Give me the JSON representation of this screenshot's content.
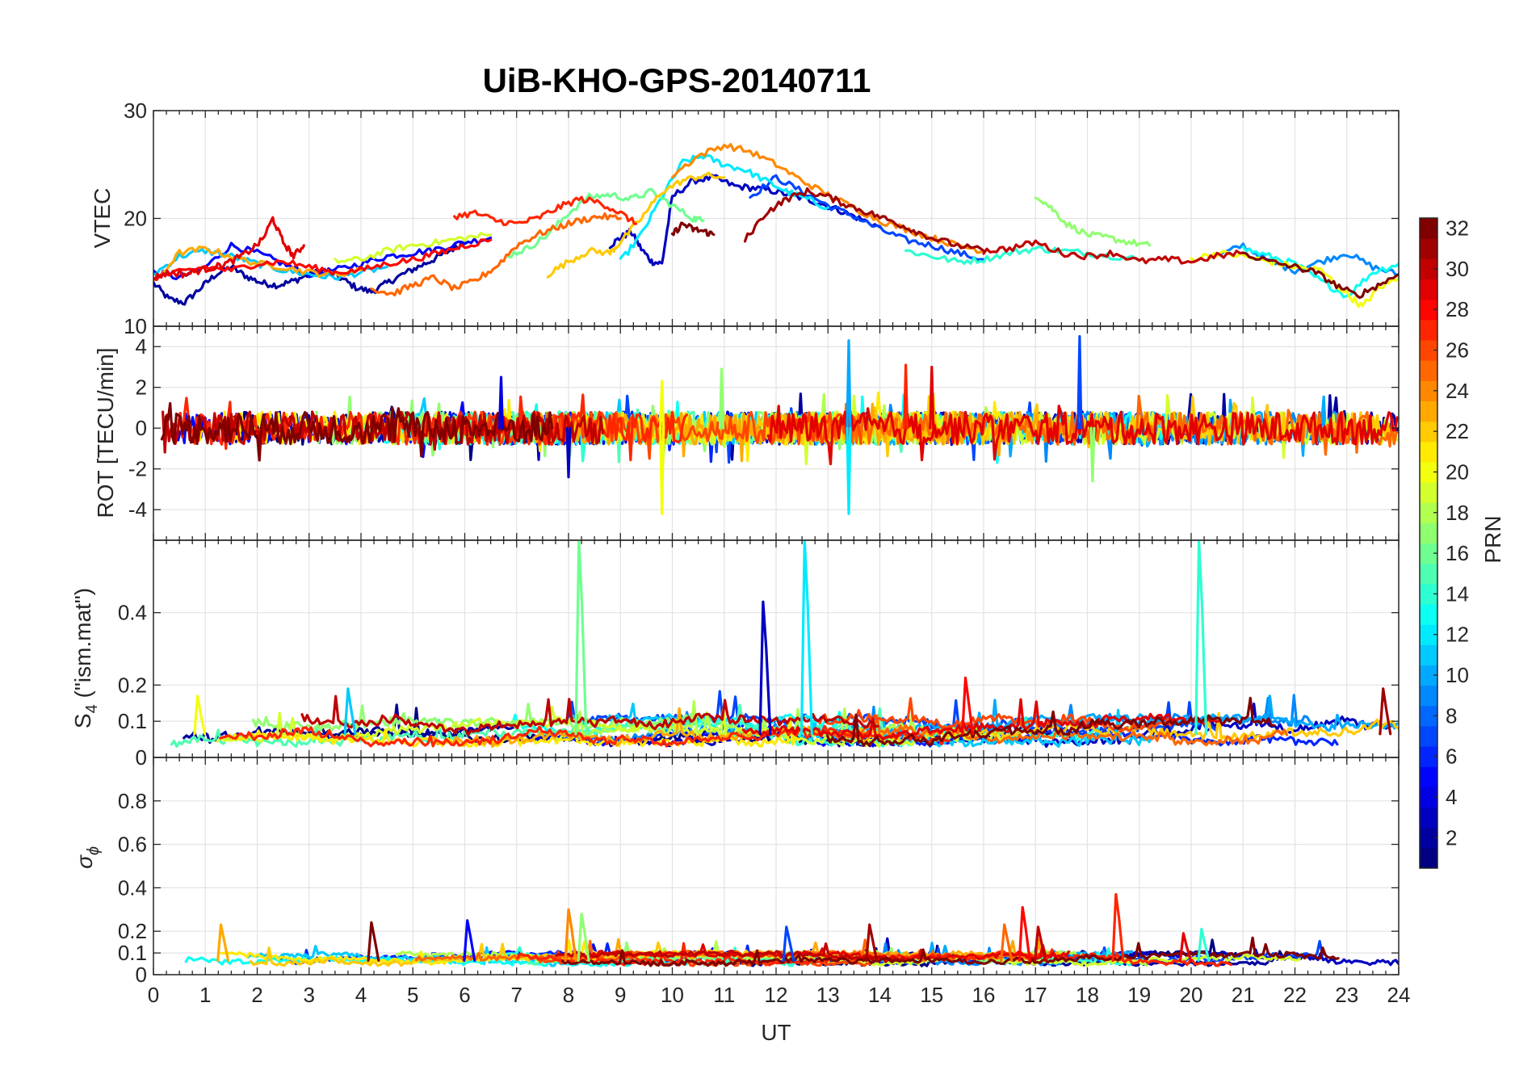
{
  "figure_title": "UiB-KHO-GPS-20140711",
  "x_axis": {
    "label": "UT",
    "ticks": [
      "0",
      "1",
      "2",
      "3",
      "4",
      "5",
      "6",
      "7",
      "8",
      "9",
      "10",
      "11",
      "12",
      "13",
      "14",
      "15",
      "16",
      "17",
      "18",
      "19",
      "20",
      "21",
      "22",
      "23",
      "24"
    ]
  },
  "colorbar": {
    "label": "PRN",
    "ticks": [
      "2",
      "4",
      "6",
      "8",
      "10",
      "12",
      "14",
      "16",
      "18",
      "20",
      "22",
      "24",
      "26",
      "28",
      "30",
      "32"
    ],
    "colormap": "jet",
    "range": [
      1,
      32
    ]
  },
  "panel_labels": {
    "vtec": "VTEC",
    "rot": "ROT [TECU/min]",
    "s4_main": "S",
    "s4_sub": "4",
    "s4_suffix": " (\"ism.mat\")",
    "sigma_main": "σ",
    "sigma_sub": "ϕ"
  },
  "chart_data": [
    {
      "type": "line",
      "panel": "VTEC",
      "xlabel": "UT",
      "ylabel": "VTEC",
      "xlim": [
        0,
        24
      ],
      "ylim": [
        10,
        30
      ],
      "yticks": [
        "10",
        "20",
        "30"
      ],
      "yticks_values": [
        10,
        20,
        30
      ],
      "grid": true,
      "series": [
        {
          "prn": 2,
          "x": [
            0.0,
            0.3,
            0.6,
            0.9,
            1.2,
            1.5,
            1.8,
            2.1,
            2.4,
            2.7,
            3.0,
            3.3,
            3.6,
            3.9,
            4.2,
            4.5,
            4.8,
            5.1,
            5.4,
            5.7,
            6.0
          ],
          "y": [
            14.0,
            12.5,
            12.2,
            13.5,
            14.8,
            15.5,
            14.6,
            14.0,
            13.8,
            14.2,
            14.8,
            15.2,
            14.5,
            13.6,
            13.2,
            14.0,
            14.8,
            15.5,
            16.2,
            17.0,
            17.8
          ]
        },
        {
          "prn": 3,
          "x": [
            8.8,
            9.0,
            9.2,
            9.4,
            9.6,
            9.8,
            10.0,
            10.4,
            10.8,
            11.2,
            11.6,
            12.0,
            12.4,
            12.8,
            13.2,
            13.6,
            14.0
          ],
          "y": [
            17.5,
            18.2,
            18.8,
            17.2,
            16.0,
            15.8,
            22.0,
            23.5,
            23.8,
            23.0,
            22.8,
            22.5,
            22.0,
            21.5,
            20.8,
            20.0,
            19.2
          ]
        },
        {
          "prn": 5,
          "x": [
            0.0,
            0.5,
            1.0,
            1.5,
            2.0,
            2.5,
            3.0,
            3.5,
            4.0,
            4.5,
            5.0,
            5.5,
            6.0,
            6.5
          ],
          "y": [
            15.0,
            14.5,
            15.5,
            17.5,
            16.8,
            15.8,
            14.8,
            15.2,
            15.8,
            16.5,
            16.8,
            17.2,
            17.8,
            18.2
          ]
        },
        {
          "prn": 7,
          "x": [
            11.5,
            12.0,
            12.5,
            13.0,
            13.5,
            14.0,
            14.5,
            15.0,
            15.5,
            16.0
          ],
          "y": [
            22.0,
            23.8,
            22.5,
            21.2,
            20.2,
            19.0,
            18.0,
            17.5,
            16.8,
            16.2
          ]
        },
        {
          "prn": 9,
          "x": [
            20.5,
            21.0,
            21.5,
            22.0,
            22.5,
            23.0,
            23.5,
            24.0
          ],
          "y": [
            16.5,
            17.5,
            16.0,
            15.2,
            16.0,
            16.8,
            15.5,
            14.8
          ]
        },
        {
          "prn": 11,
          "x": [
            0.0,
            0.5,
            1.0,
            1.5,
            2.0,
            2.5,
            3.0,
            3.5,
            4.0,
            4.5
          ],
          "y": [
            14.8,
            16.5,
            17.0,
            16.5,
            15.8,
            15.2,
            14.8,
            14.5,
            15.0,
            15.5
          ]
        },
        {
          "prn": 12,
          "x": [
            9.0,
            9.4,
            9.8,
            10.2,
            10.6,
            11.0,
            11.4,
            11.8,
            12.2,
            12.6,
            13.0
          ],
          "y": [
            16.0,
            18.5,
            22.0,
            25.2,
            25.8,
            25.0,
            24.5,
            23.5,
            22.5,
            21.8,
            21.0
          ]
        },
        {
          "prn": 13,
          "x": [
            21.0,
            21.5,
            22.0,
            22.5,
            23.0,
            23.5,
            24.0
          ],
          "y": [
            17.2,
            16.5,
            15.8,
            14.2,
            12.8,
            15.0,
            15.8
          ]
        },
        {
          "prn": 14,
          "x": [
            14.5,
            15.0,
            15.5,
            16.0,
            16.5,
            17.0,
            17.5,
            18.0,
            18.5,
            19.0
          ],
          "y": [
            17.0,
            16.5,
            16.0,
            16.2,
            16.8,
            17.2,
            17.0,
            16.8,
            16.5,
            16.2
          ]
        },
        {
          "prn": 16,
          "x": [
            6.8,
            7.2,
            7.6,
            8.0,
            8.4,
            8.8,
            9.2,
            9.6,
            10.0,
            10.4,
            10.6
          ],
          "y": [
            16.5,
            17.2,
            18.5,
            20.5,
            22.0,
            22.2,
            21.8,
            22.5,
            21.2,
            20.0,
            19.8
          ]
        },
        {
          "prn": 17,
          "x": [
            17.0,
            17.3,
            17.6,
            18.0,
            18.4,
            18.8,
            19.2
          ],
          "y": [
            22.2,
            21.0,
            19.5,
            18.5,
            18.2,
            17.8,
            17.5
          ]
        },
        {
          "prn": 19,
          "x": [
            3.5,
            4.0,
            4.5,
            5.0,
            5.5,
            6.0,
            6.5
          ],
          "y": [
            16.0,
            16.2,
            17.0,
            17.5,
            17.8,
            18.2,
            18.5
          ]
        },
        {
          "prn": 20,
          "x": [
            20.0,
            20.5,
            21.0,
            21.5,
            22.0,
            22.5,
            23.0,
            23.3,
            23.6,
            24.0
          ],
          "y": [
            16.2,
            16.8,
            16.5,
            16.0,
            15.5,
            15.2,
            13.0,
            11.8,
            13.5,
            14.5
          ]
        },
        {
          "prn": 22,
          "x": [
            7.6,
            8.0,
            8.4,
            8.8,
            9.0,
            9.4,
            9.8,
            10.2,
            10.6,
            11.0
          ],
          "y": [
            14.8,
            16.0,
            17.0,
            16.8,
            17.8,
            20.0,
            22.5,
            23.5,
            24.0,
            23.8
          ]
        },
        {
          "prn": 23,
          "x": [
            0.0,
            0.5,
            1.0,
            1.5,
            2.0,
            2.5,
            3.0,
            3.5,
            4.0
          ],
          "y": [
            14.0,
            16.8,
            17.2,
            16.5,
            15.8,
            15.5,
            15.0,
            14.8,
            15.2
          ]
        },
        {
          "prn": 24,
          "x": [
            10.0,
            10.5,
            11.0,
            11.5,
            12.0,
            12.5,
            13.0,
            13.5,
            14.0,
            14.5,
            15.0,
            15.5,
            16.0
          ],
          "y": [
            24.0,
            25.8,
            26.8,
            26.2,
            25.0,
            23.5,
            22.2,
            21.0,
            19.8,
            19.0,
            18.2,
            17.5,
            17.0
          ]
        },
        {
          "prn": 25,
          "x": [
            4.2,
            4.6,
            5.0,
            5.4,
            5.8,
            6.2,
            6.6,
            7.0,
            7.4,
            7.8,
            8.2,
            8.6,
            9.0
          ],
          "y": [
            13.5,
            13.0,
            13.8,
            14.5,
            13.5,
            14.2,
            15.5,
            17.5,
            18.5,
            19.2,
            19.8,
            20.2,
            20.0
          ]
        },
        {
          "prn": 27,
          "x": [
            5.8,
            6.2,
            6.6,
            7.0,
            7.4,
            7.8,
            8.2,
            8.6,
            9.0,
            9.3
          ],
          "y": [
            20.2,
            20.5,
            19.8,
            19.5,
            20.0,
            21.0,
            21.8,
            21.5,
            20.5,
            19.5
          ]
        },
        {
          "prn": 28,
          "x": [
            0.0,
            0.5,
            1.0,
            1.5,
            2.0,
            2.5,
            3.0,
            3.5,
            4.0,
            4.5,
            5.0,
            5.5,
            6.0,
            6.5
          ],
          "y": [
            14.5,
            15.0,
            15.5,
            15.2,
            15.8,
            16.0,
            15.5,
            15.0,
            15.2,
            15.8,
            16.2,
            16.8,
            17.5,
            18.0
          ]
        },
        {
          "prn": 29,
          "x": [
            0.0,
            0.3,
            0.6,
            0.9,
            1.2,
            1.5,
            1.8,
            2.1,
            2.3,
            2.5,
            2.7,
            2.9
          ],
          "y": [
            14.5,
            15.0,
            14.8,
            15.2,
            15.5,
            16.0,
            16.8,
            18.0,
            20.0,
            17.8,
            16.5,
            17.5
          ]
        },
        {
          "prn": 30,
          "x": [
            16.0,
            16.5,
            17.0,
            17.5,
            18.0,
            18.5,
            19.0,
            19.5,
            20.0,
            20.5,
            21.0
          ],
          "y": [
            17.0,
            17.2,
            17.8,
            16.8,
            16.5,
            16.8,
            16.0,
            16.2,
            16.0,
            16.5,
            16.8
          ]
        },
        {
          "prn": 31,
          "x": [
            11.4,
            11.8,
            12.2,
            12.6,
            13.0,
            13.4,
            13.8,
            14.2,
            14.6,
            15.0,
            15.5,
            16.0
          ],
          "y": [
            18.0,
            20.5,
            21.8,
            22.5,
            22.0,
            21.2,
            20.5,
            19.8,
            19.0,
            18.2,
            17.5,
            17.0
          ]
        },
        {
          "prn": 32,
          "x": [
            10.0,
            10.2,
            10.4,
            10.6,
            10.8
          ],
          "y": [
            18.5,
            19.5,
            19.0,
            18.8,
            18.5
          ]
        },
        {
          "prn": 32,
          "x": [
            21.0,
            21.5,
            22.0,
            22.4,
            22.8,
            23.2,
            23.6,
            24.0
          ],
          "y": [
            16.8,
            16.0,
            15.5,
            15.0,
            13.8,
            12.8,
            13.8,
            14.8
          ]
        }
      ]
    },
    {
      "type": "line",
      "panel": "ROT",
      "xlabel": "UT",
      "ylabel": "ROT [TECU/min]",
      "xlim": [
        0,
        24
      ],
      "ylim": [
        -5.5,
        5
      ],
      "yticks": [
        "-4",
        "-2",
        "0",
        "2",
        "4"
      ],
      "yticks_values": [
        -4,
        -2,
        0,
        2,
        4
      ],
      "grid": true,
      "notable_spikes": [
        {
          "x": 13.4,
          "y": 4.3,
          "prn": 10
        },
        {
          "x": 13.4,
          "y": -4.2,
          "prn": 12
        },
        {
          "x": 17.85,
          "y": 4.5,
          "prn": 7
        },
        {
          "x": 9.8,
          "y": -4.2,
          "prn": 20
        },
        {
          "x": 9.8,
          "y": 2.3,
          "prn": 20
        },
        {
          "x": 14.5,
          "y": 3.1,
          "prn": 27
        },
        {
          "x": 15.0,
          "y": 3.0,
          "prn": 29
        },
        {
          "x": 18.1,
          "y": -2.6,
          "prn": 17
        },
        {
          "x": 8.0,
          "y": -2.4,
          "prn": 3
        },
        {
          "x": 10.95,
          "y": 2.9,
          "prn": 17
        },
        {
          "x": 6.7,
          "y": 2.5,
          "prn": 4
        }
      ],
      "noise_envelope": {
        "typical_amplitude": 0.8,
        "max_amplitude": 2.5,
        "series_count": 24
      }
    },
    {
      "type": "line",
      "panel": "S4",
      "xlabel": "UT",
      "ylabel": "S4 (\"ism.mat\")",
      "xlim": [
        0,
        24
      ],
      "ylim": [
        0,
        0.6
      ],
      "yticks": [
        "0",
        "0.1",
        "0.2",
        "0.4"
      ],
      "yticks_values": [
        0,
        0.1,
        0.2,
        0.4
      ],
      "grid": true,
      "baseline_range": [
        0.03,
        0.1
      ],
      "notable_spikes": [
        {
          "x": 8.2,
          "y": 0.6,
          "prn": 16
        },
        {
          "x": 11.75,
          "y": 0.43,
          "prn": 3
        },
        {
          "x": 12.55,
          "y": 0.6,
          "prn": 12
        },
        {
          "x": 20.15,
          "y": 0.6,
          "prn": 14
        },
        {
          "x": 15.65,
          "y": 0.22,
          "prn": 28
        },
        {
          "x": 23.7,
          "y": 0.19,
          "prn": 31
        },
        {
          "x": 3.75,
          "y": 0.19,
          "prn": 11
        },
        {
          "x": 0.85,
          "y": 0.17,
          "prn": 20
        }
      ]
    },
    {
      "type": "line",
      "panel": "sigma_phi",
      "xlabel": "UT",
      "ylabel": "σϕ",
      "xlim": [
        0,
        24
      ],
      "ylim": [
        0,
        1
      ],
      "yticks": [
        "0",
        "0.1",
        "0.2",
        "0.4",
        "0.6",
        "0.8"
      ],
      "yticks_values": [
        0,
        0.1,
        0.2,
        0.4,
        0.6,
        0.8
      ],
      "grid": true,
      "baseline_range": [
        0.04,
        0.09
      ],
      "notable_spikes": [
        {
          "x": 18.55,
          "y": 0.37,
          "prn": 27
        },
        {
          "x": 16.75,
          "y": 0.31,
          "prn": 28
        },
        {
          "x": 8.0,
          "y": 0.3,
          "prn": 24
        },
        {
          "x": 8.25,
          "y": 0.28,
          "prn": 17
        },
        {
          "x": 6.05,
          "y": 0.25,
          "prn": 5
        },
        {
          "x": 1.3,
          "y": 0.23,
          "prn": 23
        },
        {
          "x": 4.2,
          "y": 0.24,
          "prn": 32
        },
        {
          "x": 13.8,
          "y": 0.23,
          "prn": 31
        },
        {
          "x": 16.4,
          "y": 0.23,
          "prn": 25
        },
        {
          "x": 17.05,
          "y": 0.22,
          "prn": 30
        },
        {
          "x": 20.2,
          "y": 0.21,
          "prn": 14
        },
        {
          "x": 19.85,
          "y": 0.19,
          "prn": 29
        },
        {
          "x": 12.2,
          "y": 0.22,
          "prn": 7
        }
      ]
    }
  ]
}
